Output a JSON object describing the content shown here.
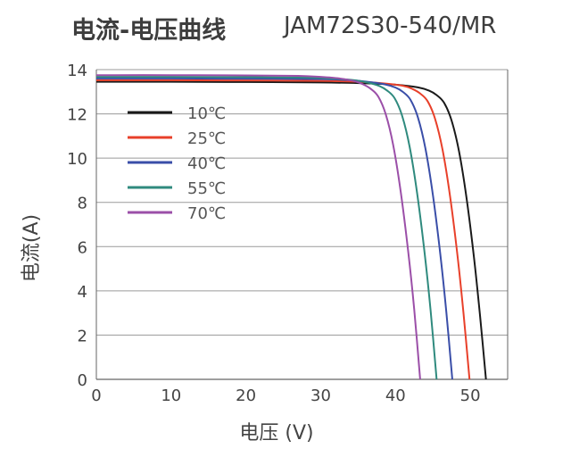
{
  "header": {
    "title": "电流-电压曲线",
    "model": "JAM72S30-540/MR"
  },
  "chart_data": {
    "type": "line",
    "title": "电流-电压曲线",
    "subtitle": "JAM72S30-540/MR",
    "xlabel": "电压 (V)",
    "ylabel": "电流(A)",
    "xlim": [
      0,
      55
    ],
    "ylim": [
      0,
      14
    ],
    "xticks": [
      "0",
      "10",
      "20",
      "30",
      "40",
      "50"
    ],
    "yticks": [
      "0",
      "2",
      "4",
      "6",
      "8",
      "10",
      "12",
      "14"
    ],
    "grid": true,
    "legend_position": "upper-left",
    "series": [
      {
        "name": "10℃",
        "color": "#1a1a1a",
        "isc": 13.45,
        "voc": 52.1,
        "vk": 46.5,
        "x": [
          0,
          10,
          20,
          30,
          36,
          40,
          43,
          44.5,
          45.5,
          46.5,
          47.5,
          48.5,
          49.5,
          50.5,
          51.3,
          52.1
        ],
        "y": [
          13.45,
          13.45,
          13.44,
          13.42,
          13.38,
          13.32,
          13.2,
          13.05,
          12.85,
          12.5,
          11.7,
          10.3,
          8.2,
          5.5,
          2.9,
          0
        ]
      },
      {
        "name": "25℃",
        "color": "#e8402a",
        "isc": 13.52,
        "voc": 49.9,
        "vk": 44.3,
        "x": [
          0,
          10,
          20,
          30,
          35,
          38,
          41,
          42.3,
          43.3,
          44.3,
          45.3,
          46.3,
          47.3,
          48.3,
          49.1,
          49.9
        ],
        "y": [
          13.52,
          13.52,
          13.51,
          13.49,
          13.45,
          13.39,
          13.27,
          13.12,
          12.92,
          12.57,
          11.77,
          10.37,
          8.27,
          5.57,
          2.97,
          0
        ]
      },
      {
        "name": "40℃",
        "color": "#3a4ea8",
        "isc": 13.6,
        "voc": 47.6,
        "vk": 42.0,
        "x": [
          0,
          10,
          20,
          30,
          34,
          36,
          38.5,
          40,
          41,
          42,
          43,
          44,
          45,
          46,
          46.8,
          47.6
        ],
        "y": [
          13.6,
          13.6,
          13.59,
          13.57,
          13.52,
          13.46,
          13.34,
          13.19,
          12.99,
          12.64,
          11.84,
          10.44,
          8.34,
          5.64,
          3.04,
          0
        ]
      },
      {
        "name": "55℃",
        "color": "#2f8a7e",
        "isc": 13.67,
        "voc": 45.5,
        "vk": 39.9,
        "x": [
          0,
          10,
          20,
          28,
          32,
          34.5,
          36.5,
          37.9,
          38.9,
          39.9,
          40.9,
          41.9,
          42.9,
          43.9,
          44.7,
          45.5
        ],
        "y": [
          13.67,
          13.67,
          13.66,
          13.64,
          13.59,
          13.52,
          13.4,
          13.25,
          13.05,
          12.7,
          11.9,
          10.5,
          8.4,
          5.7,
          3.1,
          0
        ]
      },
      {
        "name": "70℃",
        "color": "#9b4fa8",
        "isc": 13.75,
        "voc": 43.3,
        "vk": 37.7,
        "x": [
          0,
          10,
          20,
          27,
          30,
          32.5,
          34.5,
          35.7,
          36.7,
          37.7,
          38.7,
          39.7,
          40.7,
          41.7,
          42.5,
          43.3
        ],
        "y": [
          13.75,
          13.75,
          13.74,
          13.72,
          13.67,
          13.6,
          13.48,
          13.33,
          13.13,
          12.78,
          11.98,
          10.58,
          8.48,
          5.78,
          3.18,
          0
        ]
      }
    ]
  }
}
